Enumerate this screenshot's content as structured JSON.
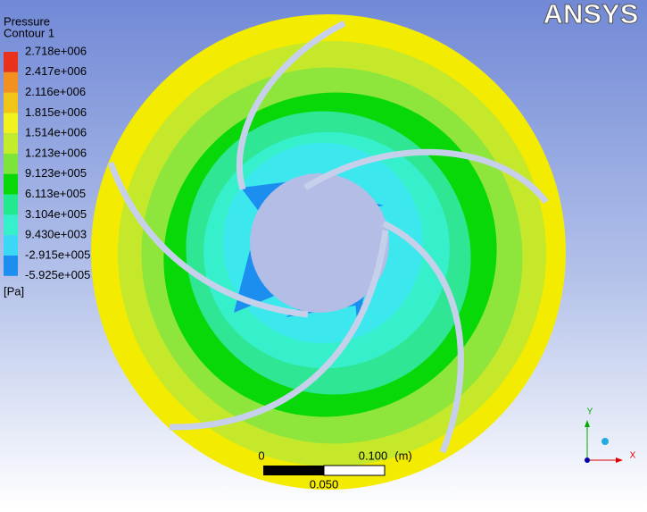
{
  "logo": "ANSYS",
  "legend": {
    "title": [
      "Pressure",
      "Contour 1"
    ],
    "levels": [
      "2.718e+006",
      "2.417e+006",
      "2.116e+006",
      "1.815e+006",
      "1.514e+006",
      "1.213e+006",
      "9.123e+005",
      "6.113e+005",
      "3.104e+005",
      "9.430e+003",
      "-2.915e+005",
      "-5.925e+005"
    ],
    "colors": [
      "#e8321c",
      "#f39020",
      "#f2c418",
      "#f2f21e",
      "#c2ec2c",
      "#7ce43a",
      "#08d808",
      "#22e890",
      "#36f0cc",
      "#3ad8f4",
      "#1c8ef0",
      "#1434e4"
    ],
    "unit": "[Pa]"
  },
  "scale": {
    "start": "0",
    "end": "0.100",
    "unit": "(m)",
    "mid": "0.050"
  },
  "axes": {
    "y": "Y",
    "x": "X"
  }
}
